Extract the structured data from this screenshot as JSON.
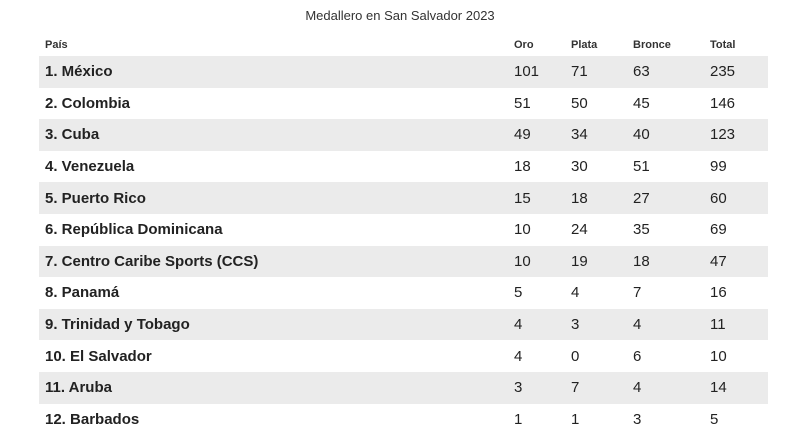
{
  "title": "Medallero en San Salvador 2023",
  "headers": {
    "country": "País",
    "gold": "Oro",
    "silver": "Plata",
    "bronze": "Bronce",
    "total": "Total"
  },
  "chart_data": {
    "type": "table",
    "title": "Medallero en San Salvador 2023",
    "columns": [
      "País",
      "Oro",
      "Plata",
      "Bronce",
      "Total"
    ],
    "rows": [
      {
        "country": "1. México",
        "gold": 101,
        "silver": 71,
        "bronze": 63,
        "total": 235
      },
      {
        "country": "2. Colombia",
        "gold": 51,
        "silver": 50,
        "bronze": 45,
        "total": 146
      },
      {
        "country": "3. Cuba",
        "gold": 49,
        "silver": 34,
        "bronze": 40,
        "total": 123
      },
      {
        "country": "4. Venezuela",
        "gold": 18,
        "silver": 30,
        "bronze": 51,
        "total": 99
      },
      {
        "country": "5. Puerto Rico",
        "gold": 15,
        "silver": 18,
        "bronze": 27,
        "total": 60
      },
      {
        "country": "6. República Dominicana",
        "gold": 10,
        "silver": 24,
        "bronze": 35,
        "total": 69
      },
      {
        "country": "7. Centro Caribe Sports (CCS)",
        "gold": 10,
        "silver": 19,
        "bronze": 18,
        "total": 47
      },
      {
        "country": "8. Panamá",
        "gold": 5,
        "silver": 4,
        "bronze": 7,
        "total": 16
      },
      {
        "country": "9. Trinidad y Tobago",
        "gold": 4,
        "silver": 3,
        "bronze": 4,
        "total": 11
      },
      {
        "country": "10. El Salvador",
        "gold": 4,
        "silver": 0,
        "bronze": 6,
        "total": 10
      },
      {
        "country": "11. Aruba",
        "gold": 3,
        "silver": 7,
        "bronze": 4,
        "total": 14
      },
      {
        "country": "12. Barbados",
        "gold": 1,
        "silver": 1,
        "bronze": 3,
        "total": 5
      }
    ]
  },
  "colors": {
    "row_shade": "#ebebeb",
    "text": "#222222"
  }
}
